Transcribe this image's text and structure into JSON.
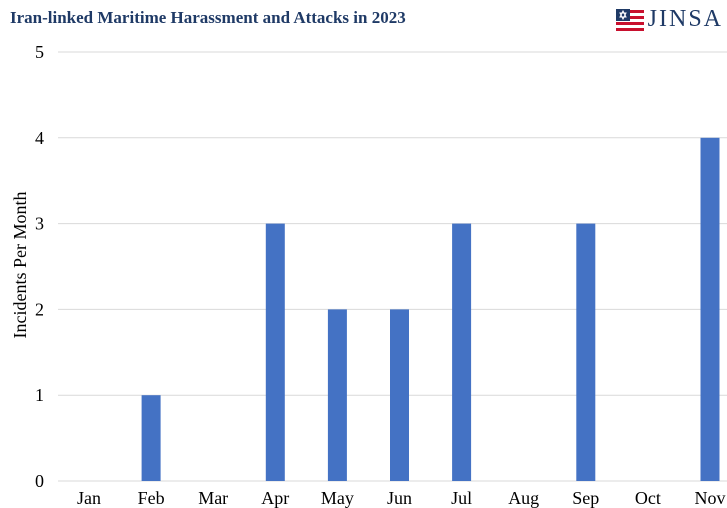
{
  "header": {
    "title": "Iran-linked Maritime Harassment and Attacks in 2023",
    "logo_text": "JINSA",
    "logo_colors": {
      "red": "#c8102e",
      "blue": "#1f3a66"
    }
  },
  "chart_data": {
    "type": "bar",
    "title": "Iran-linked Maritime Harassment and Attacks in 2023",
    "categories": [
      "Jan",
      "Feb",
      "Mar",
      "Apr",
      "May",
      "Jun",
      "Jul",
      "Aug",
      "Sep",
      "Oct",
      "Nov"
    ],
    "values": [
      0,
      1,
      0,
      3,
      2,
      2,
      3,
      0,
      3,
      0,
      4
    ],
    "ylabel": "Incidents Per Month",
    "xlabel": "",
    "ylim": [
      0,
      5
    ],
    "yticks": [
      0,
      1,
      2,
      3,
      4,
      5
    ],
    "grid": true,
    "bar_color": "#4472c4",
    "grid_color": "#d9d9d9"
  }
}
